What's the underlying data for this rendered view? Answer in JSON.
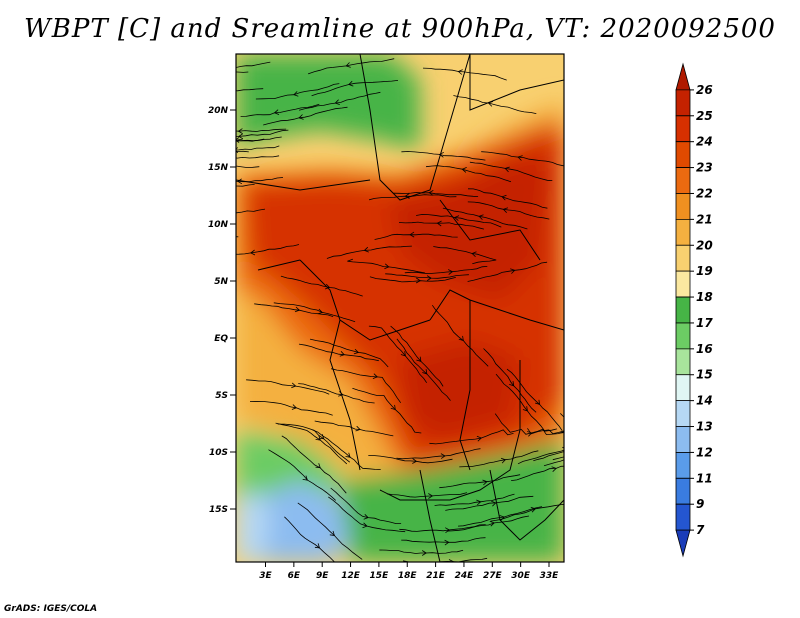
{
  "title": "WBPT [C] and Sreamline at 900hPa, VT: 2020092500",
  "credit": "GrADS: IGES/COLA",
  "map": {
    "lat_labels": [
      "20N",
      "15N",
      "10N",
      "5N",
      "EQ",
      "5S",
      "10S",
      "15S"
    ],
    "lon_labels": [
      "3E",
      "6E",
      "9E",
      "12E",
      "15E",
      "18E",
      "21E",
      "24E",
      "27E",
      "30E",
      "33E"
    ]
  },
  "colorbar": {
    "labels": [
      "26",
      "25",
      "24",
      "23",
      "22",
      "21",
      "20",
      "19",
      "18",
      "17",
      "16",
      "15",
      "14",
      "13",
      "12",
      "11",
      "9",
      "7"
    ],
    "colors": [
      "#b01a00",
      "#c42200",
      "#d63000",
      "#e04a00",
      "#ec6a10",
      "#f09020",
      "#f4b040",
      "#f8d070",
      "#fbe8a0",
      "#46b446",
      "#6ccc64",
      "#a8e49c",
      "#e0f6f4",
      "#b6d8f4",
      "#8cbcf0",
      "#5a9cea",
      "#3a7ce0",
      "#2456d0",
      "#1a3cb8"
    ]
  }
}
